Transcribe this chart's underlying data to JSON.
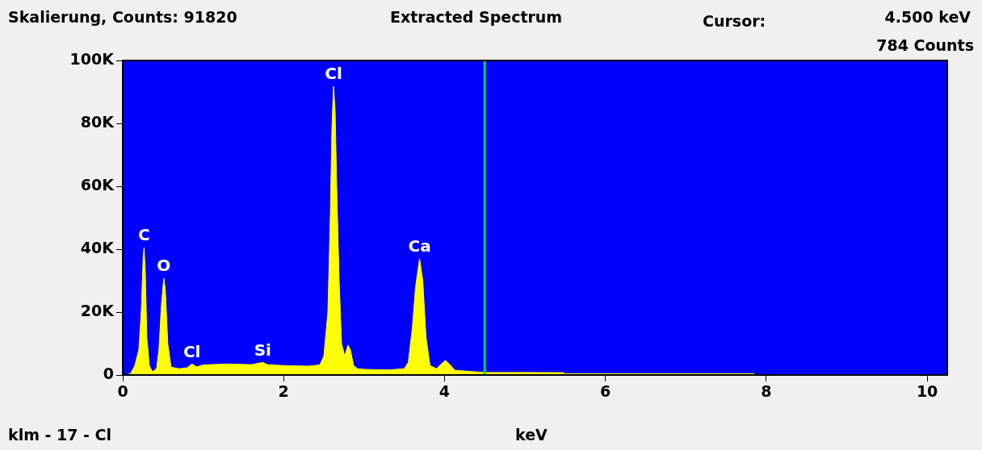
{
  "chart_data": {
    "type": "area",
    "title": "Extracted Spectrum",
    "xlabel": "keV",
    "annotations": [
      "Skalierung, Counts: 91820",
      "Cursor:",
      "4.500 keV",
      "784 Counts",
      "klm - 17 - Cl",
      {
        "text": "C",
        "x": 0.265,
        "y": 40500
      },
      {
        "text": "O",
        "x": 0.51,
        "y": 30800
      },
      {
        "text": "Cl",
        "x": 0.86,
        "y": 3500
      },
      {
        "text": "Si",
        "x": 1.74,
        "y": 4000
      },
      {
        "text": "Cl",
        "x": 2.62,
        "y": 91820
      },
      {
        "text": "Ca",
        "x": 3.69,
        "y": 37000
      }
    ],
    "series": [
      {
        "color": "#ffff00",
        "x": [
          0.05,
          0.1,
          0.15,
          0.2,
          0.23,
          0.255,
          0.265,
          0.28,
          0.3,
          0.33,
          0.37,
          0.42,
          0.45,
          0.48,
          0.51,
          0.53,
          0.56,
          0.6,
          0.7,
          0.8,
          0.86,
          0.92,
          1.0,
          1.3,
          1.6,
          1.74,
          1.8,
          2.0,
          2.3,
          2.45,
          2.5,
          2.55,
          2.58,
          2.6,
          2.62,
          2.64,
          2.66,
          2.69,
          2.72,
          2.76,
          2.8,
          2.83,
          2.87,
          2.92,
          3.0,
          3.3,
          3.5,
          3.55,
          3.6,
          3.64,
          3.69,
          3.73,
          3.77,
          3.82,
          3.9,
          3.96,
          4.01,
          4.06,
          4.13,
          4.5,
          5.0,
          5.48,
          5.5,
          7.85,
          7.86
        ],
        "values": [
          0,
          500,
          3000,
          8000,
          20000,
          38000,
          40500,
          33000,
          12000,
          3000,
          1000,
          2000,
          8000,
          22000,
          30800,
          27000,
          10000,
          2500,
          2000,
          2300,
          3500,
          2600,
          3200,
          3500,
          3300,
          4000,
          3300,
          3000,
          2800,
          3200,
          6000,
          20000,
          50000,
          78000,
          91820,
          84000,
          60000,
          30000,
          10000,
          6000,
          9500,
          8000,
          3000,
          2000,
          1800,
          1600,
          2000,
          4000,
          15000,
          28000,
          37000,
          30000,
          12000,
          3000,
          2000,
          3500,
          4600,
          3500,
          1500,
          784,
          800,
          750,
          400,
          400,
          0
        ]
      }
    ],
    "xlim": [
      0,
      10.25
    ],
    "xticks": [
      0,
      2,
      4,
      6,
      8,
      10
    ],
    "ylim": [
      0,
      100000
    ],
    "yticks": [
      {
        "value": 0,
        "label": "0"
      },
      {
        "value": 20000,
        "label": "20K"
      },
      {
        "value": 40000,
        "label": "40K"
      },
      {
        "value": 60000,
        "label": "60K"
      },
      {
        "value": 80000,
        "label": "80K"
      },
      {
        "value": 100000,
        "label": "100K"
      }
    ],
    "ref_lines": [
      {
        "axis": "x",
        "value": 4.5,
        "color": "#00dd33"
      }
    ]
  }
}
